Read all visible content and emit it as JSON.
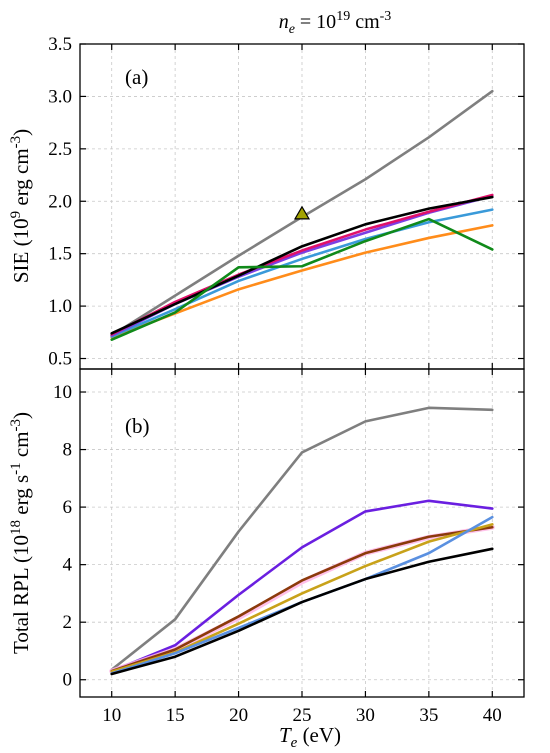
{
  "figure": {
    "top_title": {
      "prefix": "n",
      "sub": "e",
      "equals": " = 10",
      "exp": "19",
      "unit": " cm",
      "unit_exp": "-3"
    },
    "x_axis_title": {
      "var": "T",
      "sub": "e",
      "unit": " (eV)"
    }
  },
  "chart_data": [
    {
      "type": "line",
      "panel_label": "(a)",
      "ylabel": {
        "text": "SIE (10",
        "exp1": "9",
        "mid": " erg cm",
        "exp2": "-3",
        "end": ")"
      },
      "x": [
        10,
        15,
        20,
        25,
        30,
        35,
        40
      ],
      "xlim": [
        7.5,
        42.5
      ],
      "ylim": [
        0.4,
        3.5
      ],
      "xticks": [
        10,
        15,
        20,
        25,
        30,
        35,
        40
      ],
      "yticks": [
        0.5,
        1.0,
        1.5,
        2.0,
        2.5,
        3.0,
        3.5
      ],
      "ytick_labels": [
        "0.5",
        "1.0",
        "1.5",
        "2.0",
        "2.5",
        "3.0",
        "3.5"
      ],
      "grid": true,
      "series": [
        {
          "color": "#7f7f7f",
          "values": [
            0.72,
            1.1,
            1.48,
            1.85,
            2.21,
            2.61,
            3.05
          ]
        },
        {
          "color": "#ff8c1a",
          "values": [
            0.7,
            0.93,
            1.16,
            1.34,
            1.51,
            1.65,
            1.77
          ]
        },
        {
          "color": "#3a9ad9",
          "values": [
            0.71,
            0.97,
            1.24,
            1.45,
            1.64,
            1.8,
            1.92
          ]
        },
        {
          "color": "#7b3fe4",
          "values": [
            0.72,
            1.02,
            1.28,
            1.51,
            1.7,
            1.89,
            2.05
          ]
        },
        {
          "color": "#e0106a",
          "values": [
            0.73,
            1.04,
            1.3,
            1.53,
            1.73,
            1.9,
            2.06
          ]
        },
        {
          "color": "#000000",
          "values": [
            0.74,
            1.02,
            1.29,
            1.57,
            1.78,
            1.93,
            2.04
          ]
        },
        {
          "color": "#108a1a",
          "values": [
            0.68,
            0.94,
            1.37,
            1.38,
            1.62,
            1.83,
            1.54
          ]
        }
      ],
      "markers": [
        {
          "x": 25,
          "y": 1.88,
          "shape": "triangle",
          "fill": "#a3a300",
          "stroke": "#000000"
        }
      ]
    },
    {
      "type": "line",
      "panel_label": "(b)",
      "ylabel": {
        "text": "Total RPL (10",
        "exp1": "18",
        "mid": " erg s",
        "exp2": "-1",
        "mid2": " cm",
        "exp3": "-3",
        "end": ")"
      },
      "x": [
        10,
        15,
        20,
        25,
        30,
        35,
        40
      ],
      "xlim": [
        7.5,
        42.5
      ],
      "ylim": [
        -0.6,
        10.8
      ],
      "xticks": [
        10,
        15,
        20,
        25,
        30,
        35,
        40
      ],
      "yticks": [
        0,
        2,
        4,
        6,
        8,
        10
      ],
      "ytick_labels": [
        "0",
        "2",
        "4",
        "6",
        "8",
        "10"
      ],
      "grid": true,
      "series": [
        {
          "color": "#7f7f7f",
          "values": [
            0.35,
            2.1,
            5.15,
            7.9,
            8.98,
            9.45,
            9.38
          ]
        },
        {
          "color": "#6a1fe0",
          "values": [
            0.3,
            1.2,
            2.95,
            4.6,
            5.85,
            6.22,
            5.95
          ]
        },
        {
          "color": "#ffb6e6",
          "width": 5,
          "values": [
            0.3,
            1.05,
            2.15,
            3.4,
            4.4,
            4.95,
            5.3
          ]
        },
        {
          "color": "#8b3a0a",
          "values": [
            0.3,
            1.05,
            2.2,
            3.45,
            4.4,
            4.97,
            5.3
          ]
        },
        {
          "color": "#c8a21a",
          "values": [
            0.28,
            0.95,
            1.95,
            3.0,
            3.95,
            4.8,
            5.4
          ]
        },
        {
          "color": "#5a90e0",
          "values": [
            0.22,
            0.92,
            1.8,
            2.7,
            3.5,
            4.4,
            5.65
          ]
        },
        {
          "color": "#000000",
          "values": [
            0.2,
            0.8,
            1.7,
            2.7,
            3.5,
            4.1,
            4.55
          ]
        }
      ]
    }
  ]
}
